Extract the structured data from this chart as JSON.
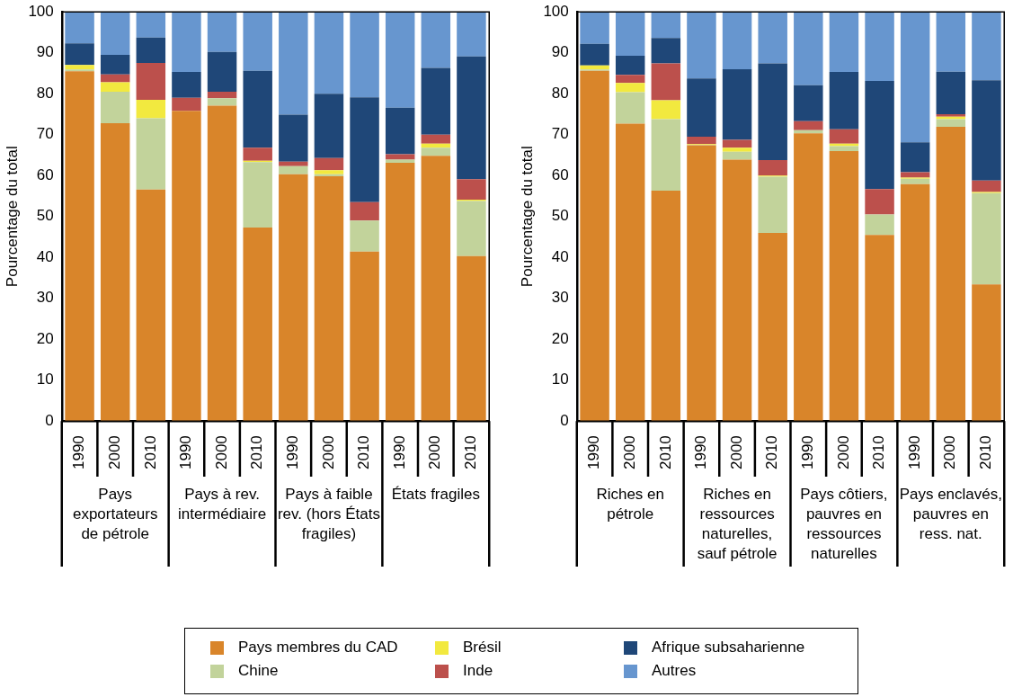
{
  "chart_data": [
    {
      "type": "bar",
      "stacked": true,
      "ylabel": "Pourcentage du total",
      "ylim": [
        0,
        100
      ],
      "yticks": [
        0,
        10,
        20,
        30,
        40,
        50,
        60,
        70,
        80,
        90,
        100
      ],
      "legend": "bottom",
      "categories": [
        "1990",
        "2000",
        "2010",
        "1990",
        "2000",
        "2010",
        "1990",
        "2000",
        "2010",
        "1990",
        "2000",
        "2010"
      ],
      "annotations": [
        "Pays exportateurs de pétrole",
        "Pays à rev. intermédiaire",
        "Pays à faible rev. (hors États fragiles)",
        "États fragiles"
      ],
      "series": [
        {
          "name": "Pays membres du CAD",
          "color": "#d9852a",
          "values": [
            85.5,
            72.8,
            56.6,
            75.8,
            77.1,
            47.3,
            60.3,
            59.8,
            41.4,
            63.1,
            64.8,
            40.3
          ]
        },
        {
          "name": "Chine",
          "color": "#c2d39b",
          "values": [
            0.4,
            7.7,
            17.4,
            null,
            1.8,
            16,
            2,
            0.5,
            7.6,
            0.8,
            2,
            13.5
          ]
        },
        {
          "name": "Brésil",
          "color": "#f2e93f",
          "values": [
            1.1,
            2.3,
            4.5,
            0,
            null,
            0.3,
            null,
            1,
            0,
            null,
            1,
            0.3
          ]
        },
        {
          "name": "Inde",
          "color": "#bc504c",
          "values": [
            0,
            1.9,
            9,
            3.2,
            1.6,
            3.2,
            1.1,
            3,
            4.5,
            1.3,
            2.2,
            5
          ]
        },
        {
          "name": "Afrique subsaharienne",
          "color": "#1f4778",
          "values": [
            5.3,
            4.8,
            6.2,
            6.3,
            9.7,
            18.8,
            11.5,
            15.7,
            25.6,
            11.4,
            16.3,
            30
          ]
        },
        {
          "name": "Autres",
          "color": "#6796cf",
          "values": [
            7.7,
            10.5,
            6.3,
            14.6,
            9.7,
            14.4,
            25,
            20,
            20.9,
            23.2,
            13.7,
            10.9
          ]
        }
      ]
    },
    {
      "type": "bar",
      "stacked": true,
      "ylabel": "Pourcentage du total",
      "ylim": [
        0,
        100
      ],
      "yticks": [
        0,
        10,
        20,
        30,
        40,
        50,
        60,
        70,
        80,
        90,
        100
      ],
      "categories": [
        "1990",
        "2000",
        "2010",
        "1990",
        "2000",
        "2010",
        "1990",
        "2000",
        "2010",
        "1990",
        "2000",
        "2010"
      ],
      "annotations": [
        "Riches en pétrole",
        "Riches en ressources naturelles, sauf pétrole",
        "Pays côtiers, pauvres en ressources naturelles",
        "Pays enclavés, pauvres en ress. nat."
      ],
      "series": [
        {
          "color": "#d9852a",
          "values": [
            85.6,
            72.7,
            56.3,
            67.4,
            63.9,
            46,
            70.3,
            66,
            45.5,
            57.9,
            71.9,
            33.4
          ]
        },
        {
          "color": "#c2d39b",
          "values": [
            0.3,
            7.7,
            17.5,
            0.1,
            1.9,
            13.7,
            0.8,
            1.2,
            5,
            1.3,
            1.9,
            22.3
          ]
        },
        {
          "color": "#f2e93f",
          "values": [
            1,
            2.2,
            4.6,
            0.2,
            1,
            0.3,
            0,
            0.6,
            0,
            0.3,
            0.6,
            0.3
          ]
        },
        {
          "color": "#bc504c",
          "values": [
            0,
            2,
            9,
            1.8,
            1.9,
            3.8,
            2.2,
            3.5,
            6.2,
            1.3,
            0.6,
            2.8
          ]
        },
        {
          "color": "#1f4778",
          "values": [
            5.3,
            4.7,
            6.2,
            14.2,
            17.3,
            23.6,
            8.8,
            14,
            26.4,
            7.3,
            10.4,
            24.5
          ]
        },
        {
          "color": "#6796cf",
          "values": [
            7.8,
            10.7,
            6.4,
            16.3,
            14,
            12.6,
            17.9,
            14.7,
            16.9,
            31.9,
            14.6,
            16.7
          ]
        }
      ]
    }
  ]
}
